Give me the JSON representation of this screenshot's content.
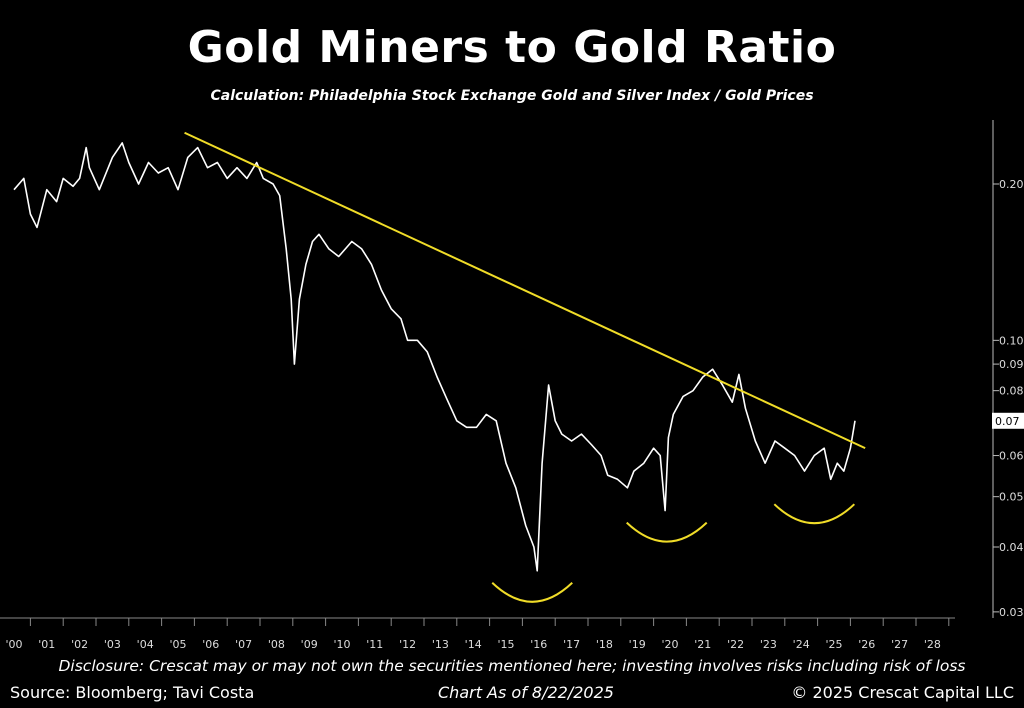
{
  "header": {
    "title": "Gold Miners to Gold Ratio",
    "subtitle": "Calculation: Philadelphia Stock Exchange Gold and Silver Index / Gold Prices"
  },
  "footer": {
    "disclosure": "Disclosure: Crescat may or may not own the securities mentioned here; investing involves risks including risk of loss",
    "source": "Source: Bloomberg; Tavi Costa",
    "as_of": "Chart As of 8/22/2025",
    "copyright": "© 2025 Crescat Capital LLC"
  },
  "colors": {
    "background": "#000000",
    "series": "#ffffff",
    "trendline": "#f0dc28",
    "axis": "#bbbbbb"
  },
  "chart_data": {
    "type": "line",
    "y_scale": "log",
    "ylim": [
      0.03,
      0.27
    ],
    "xlim": [
      1999.7,
      2028.8
    ],
    "grid": false,
    "legend": "none",
    "x_ticks": [
      "'00",
      "'01",
      "'02",
      "'03",
      "'04",
      "'05",
      "'06",
      "'07",
      "'08",
      "'09",
      "'10",
      "'11",
      "'12",
      "'13",
      "'14",
      "'15",
      "'16",
      "'17",
      "'18",
      "'19",
      "'20",
      "'21",
      "'22",
      "'23",
      "'24",
      "'25",
      "'26",
      "'27",
      "'28"
    ],
    "y_ticks": [
      {
        "value": 0.2,
        "label": "0.20"
      },
      {
        "value": 0.1,
        "label": "0.10"
      },
      {
        "value": 0.09,
        "label": "0.09"
      },
      {
        "value": 0.08,
        "label": "0.08"
      },
      {
        "value": 0.06,
        "label": "0.06"
      },
      {
        "value": 0.05,
        "label": "0.05"
      },
      {
        "value": 0.04,
        "label": "0.04"
      },
      {
        "value": 0.03,
        "label": "0.03"
      }
    ],
    "last_value_label": "0.07",
    "series": [
      {
        "x": [
          2000.0,
          2000.3,
          2000.5,
          2000.7,
          2001.0,
          2001.3,
          2001.5,
          2001.8,
          2002.0,
          2002.2,
          2002.3,
          2002.6,
          2003.0,
          2003.3,
          2003.5,
          2003.8,
          2004.1,
          2004.4,
          2004.7,
          2005.0,
          2005.3,
          2005.6,
          2005.9,
          2006.2,
          2006.5,
          2006.8,
          2007.1,
          2007.4,
          2007.6,
          2007.9,
          2008.1,
          2008.3,
          2008.45,
          2008.55,
          2008.7,
          2008.9,
          2009.1,
          2009.3,
          2009.6,
          2009.9,
          2010.3,
          2010.6,
          2010.9,
          2011.2,
          2011.5,
          2011.8,
          2012.0,
          2012.3,
          2012.6,
          2012.9,
          2013.2,
          2013.5,
          2013.8,
          2014.1,
          2014.4,
          2014.7,
          2015.0,
          2015.3,
          2015.6,
          2015.85,
          2015.95,
          2016.1,
          2016.3,
          2016.5,
          2016.7,
          2017.0,
          2017.3,
          2017.6,
          2017.9,
          2018.1,
          2018.4,
          2018.7,
          2018.9,
          2019.2,
          2019.5,
          2019.7,
          2019.85,
          2019.95,
          2020.1,
          2020.4,
          2020.7,
          2021.0,
          2021.3,
          2021.6,
          2021.9,
          2022.1,
          2022.3,
          2022.6,
          2022.9,
          2023.2,
          2023.5,
          2023.8,
          2024.1,
          2024.4,
          2024.7,
          2024.9,
          2025.1,
          2025.3,
          2025.5,
          2025.64
        ],
        "y": [
          0.195,
          0.205,
          0.175,
          0.165,
          0.195,
          0.185,
          0.205,
          0.198,
          0.205,
          0.235,
          0.215,
          0.195,
          0.225,
          0.24,
          0.22,
          0.2,
          0.22,
          0.21,
          0.215,
          0.195,
          0.225,
          0.235,
          0.215,
          0.22,
          0.205,
          0.215,
          0.205,
          0.22,
          0.205,
          0.2,
          0.19,
          0.15,
          0.12,
          0.09,
          0.12,
          0.14,
          0.155,
          0.16,
          0.15,
          0.145,
          0.155,
          0.15,
          0.14,
          0.125,
          0.115,
          0.11,
          0.1,
          0.1,
          0.095,
          0.085,
          0.077,
          0.07,
          0.068,
          0.068,
          0.072,
          0.07,
          0.058,
          0.052,
          0.044,
          0.04,
          0.036,
          0.058,
          0.082,
          0.07,
          0.066,
          0.064,
          0.066,
          0.063,
          0.06,
          0.055,
          0.054,
          0.052,
          0.056,
          0.058,
          0.062,
          0.06,
          0.047,
          0.065,
          0.072,
          0.078,
          0.08,
          0.085,
          0.088,
          0.082,
          0.076,
          0.086,
          0.074,
          0.064,
          0.058,
          0.064,
          0.062,
          0.06,
          0.056,
          0.06,
          0.062,
          0.054,
          0.058,
          0.056,
          0.062,
          0.07
        ]
      }
    ],
    "trendline": {
      "x": [
        2005.2,
        2025.95
      ],
      "y": [
        0.251,
        0.062
      ]
    },
    "troughs": [
      {
        "x_center": 2015.8,
        "y": 0.036
      },
      {
        "x_center": 2019.9,
        "y": 0.047
      },
      {
        "x_center": 2024.4,
        "y": 0.051
      }
    ]
  }
}
